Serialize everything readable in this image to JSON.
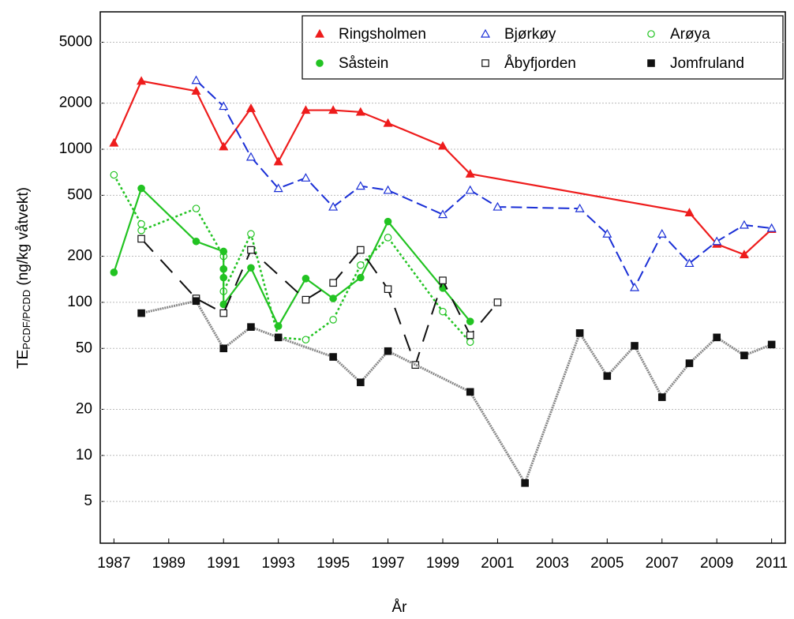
{
  "chart_data": {
    "type": "line",
    "x_label": "År",
    "y_label": "TE",
    "y_label_sub": "PCDF/PCDD",
    "y_label_rest": " (ng/kg våtvekt)",
    "log_y": true,
    "grid": true,
    "legend": "top-right",
    "xlim": [
      1986.5,
      2011.5
    ],
    "xticks": [
      1987,
      1989,
      1991,
      1993,
      1995,
      1997,
      1999,
      2001,
      2003,
      2005,
      2007,
      2009,
      2011
    ],
    "ylim": [
      2.67,
      7900
    ],
    "yticks": [
      5,
      10,
      20,
      50,
      100,
      200,
      500,
      1000,
      2000,
      5000
    ],
    "series": [
      {
        "name": "Ringsholmen",
        "color": "#ee1c1c",
        "line_style": "solid",
        "marker": "triangle",
        "x": [
          1987,
          1988,
          1990,
          1991,
          1992,
          1993,
          1994,
          1995,
          1996,
          1997,
          1999,
          2000,
          2008,
          2009,
          2010,
          2011
        ],
        "values": [
          1100,
          2790,
          2400,
          1040,
          1850,
          830,
          1800,
          1800,
          1750,
          1480,
          1050,
          690,
          385,
          240,
          205,
          300
        ]
      },
      {
        "name": "Bjørkøy",
        "color": "#1a2fd6",
        "line_style": "dashed",
        "marker": "triangle-open",
        "x": [
          1990,
          1991,
          1992,
          1993,
          1994,
          1995,
          1996,
          1997,
          1999,
          2000,
          2001,
          2004,
          2005,
          2006,
          2007,
          2008,
          2009,
          2010,
          2011
        ],
        "values": [
          2820,
          1910,
          890,
          555,
          650,
          420,
          575,
          540,
          375,
          540,
          420,
          410,
          280,
          125,
          280,
          180,
          250,
          320,
          305
        ]
      },
      {
        "name": "Arøya",
        "color": "#22c322",
        "line_style": "dotted",
        "marker": "circle-open",
        "x": [
          1987,
          1988,
          1988,
          1990,
          1991,
          1991,
          1991,
          1992,
          1993,
          1994,
          1995,
          1996,
          1997,
          1999,
          2000
        ],
        "values": [
          680,
          325,
          295,
          410,
          200,
          165,
          118,
          280,
          59,
          57,
          77,
          175,
          265,
          87,
          55
        ]
      },
      {
        "name": "Såstein",
        "color": "#22c322",
        "line_style": "solid",
        "marker": "circle",
        "x": [
          1987,
          1988,
          1990,
          1991,
          1991,
          1991,
          1991,
          1992,
          1993,
          1994,
          1995,
          1996,
          1997,
          1999,
          2000
        ],
        "values": [
          157,
          555,
          250,
          215,
          165,
          145,
          97,
          168,
          70,
          143,
          106,
          145,
          337,
          124,
          75
        ]
      },
      {
        "name": "Åbyfjorden",
        "color": "#111111",
        "line_style": "longdash",
        "marker": "square-open",
        "x": [
          1988,
          1990,
          1991,
          1992,
          1994,
          1995,
          1996,
          1997,
          1998,
          1999,
          2000,
          2001
        ],
        "values": [
          260,
          106,
          85,
          220,
          104,
          134,
          220,
          122,
          39,
          139,
          61,
          100
        ]
      },
      {
        "name": "Jomfruland",
        "color": "#111111",
        "line_color": "#888888",
        "line_style": "dotted-thick",
        "marker": "square",
        "x": [
          1988,
          1990,
          1991,
          1992,
          1993,
          1995,
          1996,
          1997,
          2000,
          2002,
          2004,
          2005,
          2006,
          2007,
          2008,
          2009,
          2010,
          2011
        ],
        "values": [
          85,
          102,
          50,
          69,
          59,
          44,
          30,
          48,
          26,
          6.6,
          63,
          33,
          52,
          24,
          40,
          59,
          45,
          53
        ]
      }
    ]
  }
}
